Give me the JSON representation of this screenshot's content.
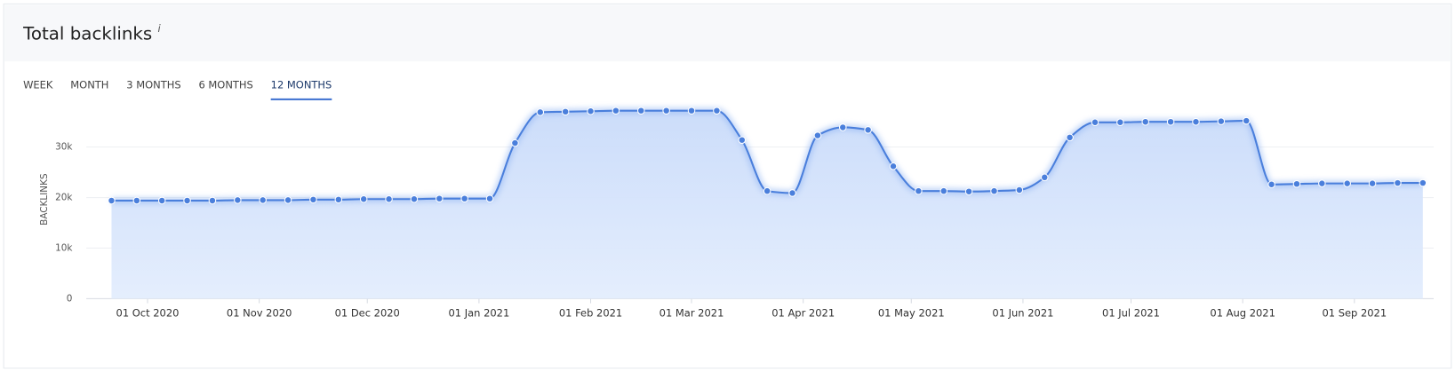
{
  "header": {
    "title": "Total backlinks",
    "info": "i"
  },
  "tabs": [
    "WEEK",
    "MONTH",
    "3 MONTHS",
    "6 MONTHS",
    "12 MONTHS"
  ],
  "active_tab": 4,
  "chart_data": {
    "type": "area",
    "y_label": "BACKLINKS",
    "color": "#4a7fdc",
    "x": [
      "2020-09-21",
      "2020-09-28",
      "2020-10-05",
      "2020-10-12",
      "2020-10-19",
      "2020-10-26",
      "2020-11-02",
      "2020-11-09",
      "2020-11-16",
      "2020-11-23",
      "2020-11-30",
      "2020-12-07",
      "2020-12-14",
      "2020-12-21",
      "2020-12-28",
      "2021-01-04",
      "2021-01-11",
      "2021-01-18",
      "2021-01-25",
      "2021-02-01",
      "2021-02-08",
      "2021-02-15",
      "2021-02-22",
      "2021-03-01",
      "2021-03-08",
      "2021-03-15",
      "2021-03-22",
      "2021-03-29",
      "2021-04-05",
      "2021-04-12",
      "2021-04-19",
      "2021-04-26",
      "2021-05-03",
      "2021-05-10",
      "2021-05-17",
      "2021-05-24",
      "2021-05-31",
      "2021-06-07",
      "2021-06-14",
      "2021-06-21",
      "2021-06-28",
      "2021-07-05",
      "2021-07-12",
      "2021-07-19",
      "2021-07-26",
      "2021-08-02",
      "2021-08-09",
      "2021-08-16",
      "2021-08-23",
      "2021-08-30",
      "2021-09-06",
      "2021-09-13",
      "2021-09-20"
    ],
    "values": [
      19400,
      19400,
      19400,
      19400,
      19400,
      19500,
      19500,
      19500,
      19600,
      19600,
      19700,
      19700,
      19700,
      19800,
      19800,
      19800,
      30800,
      36900,
      37000,
      37100,
      37200,
      37200,
      37200,
      37200,
      37200,
      31400,
      21300,
      20900,
      32300,
      33900,
      33400,
      26200,
      21300,
      21300,
      21200,
      21300,
      21500,
      24000,
      31900,
      34900,
      34900,
      35000,
      35000,
      35000,
      35100,
      35200,
      22600,
      22700,
      22800,
      22800,
      22800,
      22900,
      22900
    ],
    "xlim": [
      "2020-09-14",
      "2021-09-23"
    ],
    "xticks": [
      {
        "value": "2020-10-01",
        "label": "01 Oct 2020"
      },
      {
        "value": "2020-11-01",
        "label": "01 Nov 2020"
      },
      {
        "value": "2020-12-01",
        "label": "01 Dec 2020"
      },
      {
        "value": "2021-01-01",
        "label": "01 Jan 2021"
      },
      {
        "value": "2021-02-01",
        "label": "01 Feb 2021"
      },
      {
        "value": "2021-03-01",
        "label": "01 Mar 2021"
      },
      {
        "value": "2021-04-01",
        "label": "01 Apr 2021"
      },
      {
        "value": "2021-05-01",
        "label": "01 May 2021"
      },
      {
        "value": "2021-06-01",
        "label": "01 Jun 2021"
      },
      {
        "value": "2021-07-01",
        "label": "01 Jul 2021"
      },
      {
        "value": "2021-08-01",
        "label": "01 Aug 2021"
      },
      {
        "value": "2021-09-01",
        "label": "01 Sep 2021"
      }
    ],
    "ylim": [
      0,
      40000
    ],
    "yticks": [
      0,
      {
        "value": 10000,
        "label": "10k"
      },
      {
        "value": 20000,
        "label": "20k"
      },
      {
        "value": 30000,
        "label": "30k"
      }
    ],
    "grid": true
  }
}
